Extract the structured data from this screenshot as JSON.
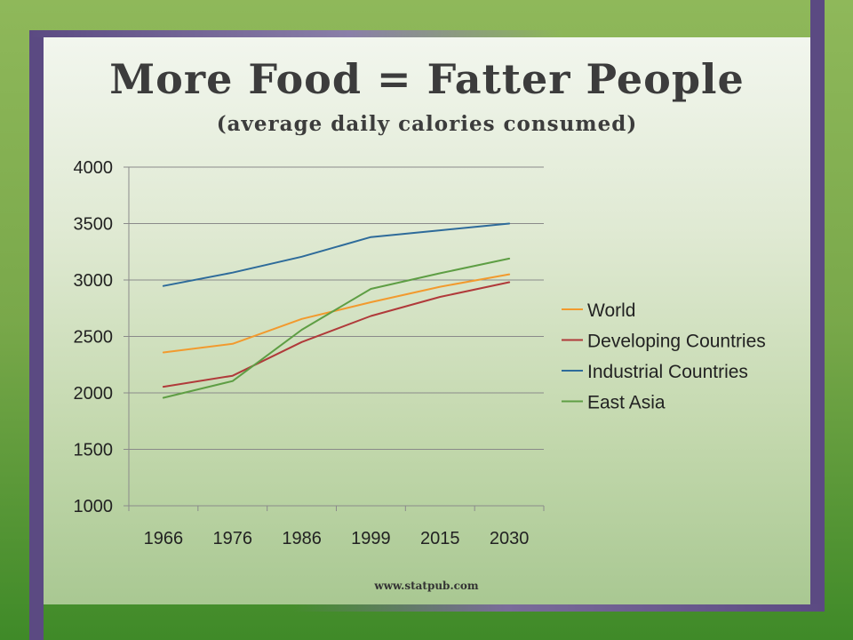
{
  "slide": {
    "title": "More Food = Fatter People",
    "subtitle": "(average daily calories consumed)",
    "footer": "www.statpub.com"
  },
  "chart_data": {
    "type": "line",
    "title": "",
    "xlabel": "",
    "ylabel": "",
    "categories": [
      "1966",
      "1976",
      "1986",
      "1999",
      "2015",
      "2030"
    ],
    "ylim": [
      1000,
      4000
    ],
    "yticks": [
      1000,
      1500,
      2000,
      2500,
      3000,
      3500,
      4000
    ],
    "grid": true,
    "legend": "right",
    "series": [
      {
        "name": "World",
        "color": "#f29a2e",
        "values": [
          2358,
          2435,
          2655,
          2803,
          2940,
          3050
        ]
      },
      {
        "name": "Developing Countries",
        "color": "#b03a3a",
        "values": [
          2054,
          2152,
          2450,
          2681,
          2850,
          2980
        ]
      },
      {
        "name": "Industrial Countries",
        "color": "#2e6b9a",
        "values": [
          2947,
          3065,
          3206,
          3380,
          3440,
          3500
        ]
      },
      {
        "name": "East Asia",
        "color": "#5e9e44",
        "values": [
          1957,
          2105,
          2559,
          2921,
          3060,
          3190
        ]
      }
    ]
  }
}
